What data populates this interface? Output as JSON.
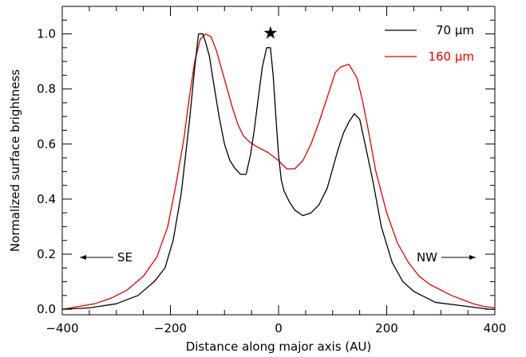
{
  "chart_data": {
    "type": "line",
    "xlabel": "Distance along major axis (AU)",
    "ylabel": "Normalized surface brightness",
    "xlim": [
      -400,
      400
    ],
    "ylim": [
      -0.02,
      1.1
    ],
    "x_ticks": [
      -400,
      -200,
      0,
      200,
      400
    ],
    "x_tick_labels": [
      "−400",
      "−200",
      "0",
      "200",
      "400"
    ],
    "y_ticks": [
      0.0,
      0.2,
      0.4,
      0.6,
      0.8,
      1.0
    ],
    "y_tick_labels": [
      "0.0",
      "0.2",
      "0.4",
      "0.6",
      "0.8",
      "1.0"
    ],
    "grid": false,
    "legend_position": "top-right",
    "series": [
      {
        "name": "70 μm",
        "color": "#000000",
        "x": [
          -400,
          -350,
          -300,
          -260,
          -230,
          -210,
          -195,
          -180,
          -165,
          -155,
          -148,
          -140,
          -135,
          -128,
          -120,
          -110,
          -100,
          -90,
          -80,
          -70,
          -60,
          -52,
          -45,
          -38,
          -30,
          -22,
          -15,
          -10,
          -5,
          0,
          5,
          10,
          20,
          30,
          45,
          60,
          75,
          90,
          100,
          110,
          120,
          130,
          140,
          150,
          160,
          175,
          190,
          210,
          230,
          250,
          270,
          290,
          310,
          330,
          350,
          370,
          390,
          400
        ],
        "y": [
          0.0,
          0.005,
          0.02,
          0.05,
          0.1,
          0.15,
          0.25,
          0.42,
          0.68,
          0.88,
          1.0,
          1.0,
          0.97,
          0.92,
          0.82,
          0.7,
          0.6,
          0.54,
          0.51,
          0.49,
          0.49,
          0.56,
          0.65,
          0.76,
          0.88,
          0.95,
          0.95,
          0.85,
          0.7,
          0.56,
          0.47,
          0.43,
          0.39,
          0.36,
          0.34,
          0.35,
          0.38,
          0.44,
          0.51,
          0.58,
          0.64,
          0.68,
          0.71,
          0.69,
          0.6,
          0.46,
          0.3,
          0.17,
          0.1,
          0.065,
          0.045,
          0.025,
          0.02,
          0.015,
          0.01,
          0.005,
          0.0,
          0.0
        ]
      },
      {
        "name": "160 μm",
        "color": "#e00000",
        "x": [
          -400,
          -370,
          -340,
          -310,
          -280,
          -250,
          -225,
          -205,
          -190,
          -175,
          -165,
          -155,
          -145,
          -135,
          -125,
          -115,
          -105,
          -95,
          -85,
          -75,
          -65,
          -55,
          -40,
          -20,
          0,
          15,
          30,
          45,
          60,
          75,
          90,
          105,
          115,
          130,
          145,
          155,
          165,
          180,
          200,
          220,
          240,
          260,
          280,
          300,
          320,
          340,
          360,
          380,
          400
        ],
        "y": [
          0.0,
          0.01,
          0.02,
          0.04,
          0.07,
          0.12,
          0.19,
          0.3,
          0.45,
          0.62,
          0.77,
          0.9,
          0.98,
          1.0,
          0.99,
          0.94,
          0.87,
          0.8,
          0.73,
          0.67,
          0.63,
          0.61,
          0.59,
          0.57,
          0.54,
          0.51,
          0.51,
          0.54,
          0.6,
          0.68,
          0.77,
          0.86,
          0.88,
          0.89,
          0.84,
          0.76,
          0.66,
          0.5,
          0.35,
          0.24,
          0.17,
          0.12,
          0.09,
          0.07,
          0.05,
          0.035,
          0.02,
          0.01,
          0.005
        ]
      }
    ],
    "annotations": {
      "star": "★",
      "star_x": -15,
      "star_y": 0.995,
      "left_label": "SE",
      "right_label": "NW"
    }
  }
}
